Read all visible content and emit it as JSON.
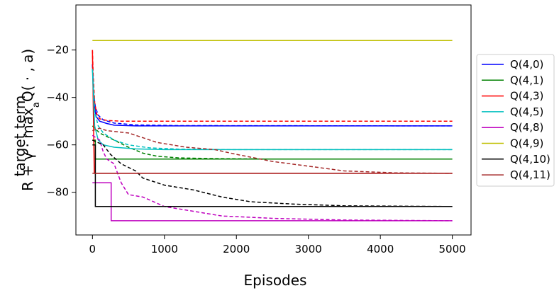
{
  "chart_data": {
    "type": "line",
    "title": "",
    "xlabel": "Episodes",
    "ylabel_line1": "target term",
    "ylabel_line2": "R + γ · max",
    "ylabel_sub": "a",
    "ylabel_tail": "Q( · , a)",
    "xlim": [
      -230,
      5260
    ],
    "ylim": [
      -98,
      -1
    ],
    "xticks": [
      0,
      1000,
      2000,
      3000,
      4000,
      5000
    ],
    "xtick_labels": [
      "0",
      "1000",
      "2000",
      "3000",
      "4000",
      "5000"
    ],
    "yticks": [
      -20,
      -40,
      -60,
      -80
    ],
    "ytick_labels": [
      "−20",
      "−40",
      "−60",
      "−80"
    ],
    "grid": false,
    "legend_placement": "right-outside",
    "series": [
      {
        "name": "Q(4,0)",
        "color": "#0000ff",
        "solid": [
          [
            0,
            -26
          ],
          [
            20,
            -42
          ],
          [
            50,
            -48
          ],
          [
            100,
            -50
          ],
          [
            200,
            -51
          ],
          [
            300,
            -51.7
          ],
          [
            600,
            -52
          ],
          [
            5000,
            -52
          ]
        ],
        "dashed": [
          [
            0,
            -26
          ],
          [
            15,
            -38
          ],
          [
            40,
            -44
          ],
          [
            80,
            -47.5
          ],
          [
            150,
            -49.5
          ],
          [
            300,
            -50.8
          ],
          [
            600,
            -51.6
          ],
          [
            1200,
            -51.9
          ],
          [
            5000,
            -52
          ]
        ]
      },
      {
        "name": "Q(4,1)",
        "color": "#008000",
        "solid": [
          [
            0,
            -58
          ],
          [
            40,
            -58
          ],
          [
            40,
            -66
          ],
          [
            5000,
            -66
          ]
        ],
        "dashed": [
          [
            0,
            -52
          ],
          [
            100,
            -55
          ],
          [
            300,
            -58
          ],
          [
            500,
            -61
          ],
          [
            700,
            -63.5
          ],
          [
            900,
            -64.8
          ],
          [
            1200,
            -65.5
          ],
          [
            1700,
            -65.8
          ],
          [
            2500,
            -66
          ],
          [
            5000,
            -66
          ]
        ]
      },
      {
        "name": "Q(4,3)",
        "color": "#ff0000",
        "solid": [
          [
            0,
            -20
          ],
          [
            25,
            -72
          ],
          [
            5000,
            -72
          ]
        ],
        "dashed": [
          [
            0,
            -20
          ],
          [
            10,
            -30
          ],
          [
            30,
            -42
          ],
          [
            60,
            -47
          ],
          [
            100,
            -49
          ],
          [
            200,
            -49.7
          ],
          [
            400,
            -50
          ],
          [
            5000,
            -50
          ]
        ]
      },
      {
        "name": "Q(4,5)",
        "color": "#00bfbf",
        "solid": [
          [
            0,
            -28
          ],
          [
            30,
            -52
          ],
          [
            80,
            -58
          ],
          [
            150,
            -60
          ],
          [
            300,
            -61
          ],
          [
            600,
            -61.7
          ],
          [
            1000,
            -62
          ],
          [
            5000,
            -62
          ]
        ],
        "dashed": [
          [
            0,
            -28
          ],
          [
            30,
            -46
          ],
          [
            80,
            -52
          ],
          [
            150,
            -55
          ],
          [
            300,
            -58
          ],
          [
            500,
            -60
          ],
          [
            800,
            -61.3
          ],
          [
            1200,
            -61.8
          ],
          [
            2000,
            -62
          ],
          [
            5000,
            -62
          ]
        ]
      },
      {
        "name": "Q(4,8)",
        "color": "#bf00bf",
        "solid": [
          [
            0,
            -76
          ],
          [
            260,
            -76
          ],
          [
            260,
            -92
          ],
          [
            5000,
            -92
          ]
        ],
        "dashed": [
          [
            0,
            -56
          ],
          [
            100,
            -58
          ],
          [
            150,
            -63
          ],
          [
            200,
            -66
          ],
          [
            300,
            -68
          ],
          [
            350,
            -72
          ],
          [
            400,
            -76
          ],
          [
            500,
            -81
          ],
          [
            700,
            -82
          ],
          [
            1000,
            -86
          ],
          [
            1400,
            -88
          ],
          [
            1800,
            -90
          ],
          [
            2500,
            -91
          ],
          [
            3500,
            -91.7
          ],
          [
            5000,
            -92
          ]
        ]
      },
      {
        "name": "Q(4,9)",
        "color": "#bfbf00",
        "solid": [
          [
            0,
            -16
          ],
          [
            5000,
            -16
          ]
        ],
        "dashed": []
      },
      {
        "name": "Q(4,10)",
        "color": "#000000",
        "solid": [
          [
            0,
            -60
          ],
          [
            40,
            -60
          ],
          [
            40,
            -86
          ],
          [
            5000,
            -86
          ]
        ],
        "dashed": [
          [
            0,
            -58
          ],
          [
            150,
            -60
          ],
          [
            250,
            -64
          ],
          [
            400,
            -68
          ],
          [
            600,
            -71
          ],
          [
            700,
            -74
          ],
          [
            1000,
            -77
          ],
          [
            1400,
            -79
          ],
          [
            1800,
            -82
          ],
          [
            2200,
            -84
          ],
          [
            2800,
            -85
          ],
          [
            3500,
            -85.7
          ],
          [
            5000,
            -86
          ]
        ]
      },
      {
        "name": "Q(4,11)",
        "color": "#a52a2a",
        "solid": [
          [
            0,
            -72
          ],
          [
            5000,
            -72
          ]
        ],
        "dashed": [
          [
            0,
            -54
          ],
          [
            100,
            -53
          ],
          [
            200,
            -54
          ],
          [
            500,
            -55
          ],
          [
            700,
            -57
          ],
          [
            900,
            -59
          ],
          [
            1300,
            -61
          ],
          [
            1700,
            -62
          ],
          [
            2000,
            -64
          ],
          [
            2500,
            -67
          ],
          [
            3000,
            -69
          ],
          [
            3500,
            -71
          ],
          [
            4200,
            -71.8
          ],
          [
            5000,
            -72
          ]
        ]
      }
    ]
  }
}
